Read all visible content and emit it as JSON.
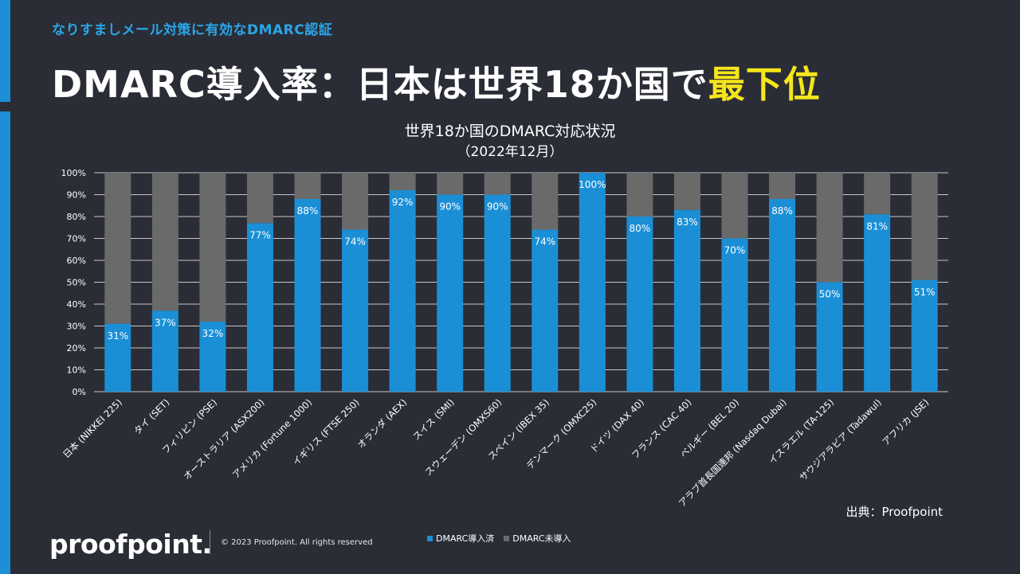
{
  "header": {
    "subtitle": "なりすましメール対策に有効なDMARC認証",
    "headline_main": "DMARC導入率：日本は世界18か国で",
    "headline_highlight": "最下位"
  },
  "colors": {
    "background": "#2a2d36",
    "accent": "#1e8fd6",
    "highlight": "#f5e51b",
    "series_adopted": "#1a8fd6",
    "series_not_adopted": "#6a6a6a"
  },
  "chart_data": {
    "type": "bar",
    "stacked": true,
    "title": "世界18か国のDMARC対応状況",
    "subtitle": "（2022年12月）",
    "categories": [
      "日本 (NIKKEI 225)",
      "タイ (SET)",
      "フィリピン (PSE)",
      "オーストラリア (ASX200)",
      "アメリカ (Fortune 1000)",
      "イギリス (FTSE 250)",
      "オランダ (AEX)",
      "スイス (SMI)",
      "スウェーデン (OMXS60)",
      "スペイン (IBEX 35)",
      "デンマーク (OMXC25)",
      "ドイツ (DAX 40)",
      "フランス (CAC 40)",
      "ベルギー (BEL 20)",
      "アラブ首長国連邦 (Nasdaq Dubai)",
      "イスラエル (TA-125)",
      "サウジアラビア (Tadawul)",
      "アフリカ (JSE)"
    ],
    "series": [
      {
        "name": "DMARC導入済",
        "values": [
          31,
          37,
          32,
          77,
          88,
          74,
          92,
          90,
          90,
          74,
          100,
          80,
          83,
          70,
          88,
          50,
          81,
          51
        ]
      },
      {
        "name": "DMARC未導入",
        "values": [
          69,
          63,
          68,
          23,
          12,
          26,
          8,
          10,
          10,
          26,
          0,
          20,
          17,
          30,
          12,
          50,
          19,
          49
        ]
      }
    ],
    "data_labels": [
      "31%",
      "37%",
      "32%",
      "77%",
      "88%",
      "74%",
      "92%",
      "90%",
      "90%",
      "74%",
      "100%",
      "80%",
      "83%",
      "70%",
      "88%",
      "50%",
      "81%",
      "51%"
    ],
    "y_ticks": [
      "0%",
      "10%",
      "20%",
      "30%",
      "40%",
      "50%",
      "60%",
      "70%",
      "80%",
      "90%",
      "100%"
    ],
    "ylim": [
      0,
      100
    ],
    "grid": true,
    "legend_position": "bottom"
  },
  "footer": {
    "source": "出典：Proofpoint",
    "logo_text": "proofpoint.",
    "copyright": "© 2023 Proofpoint. All rights reserved"
  }
}
